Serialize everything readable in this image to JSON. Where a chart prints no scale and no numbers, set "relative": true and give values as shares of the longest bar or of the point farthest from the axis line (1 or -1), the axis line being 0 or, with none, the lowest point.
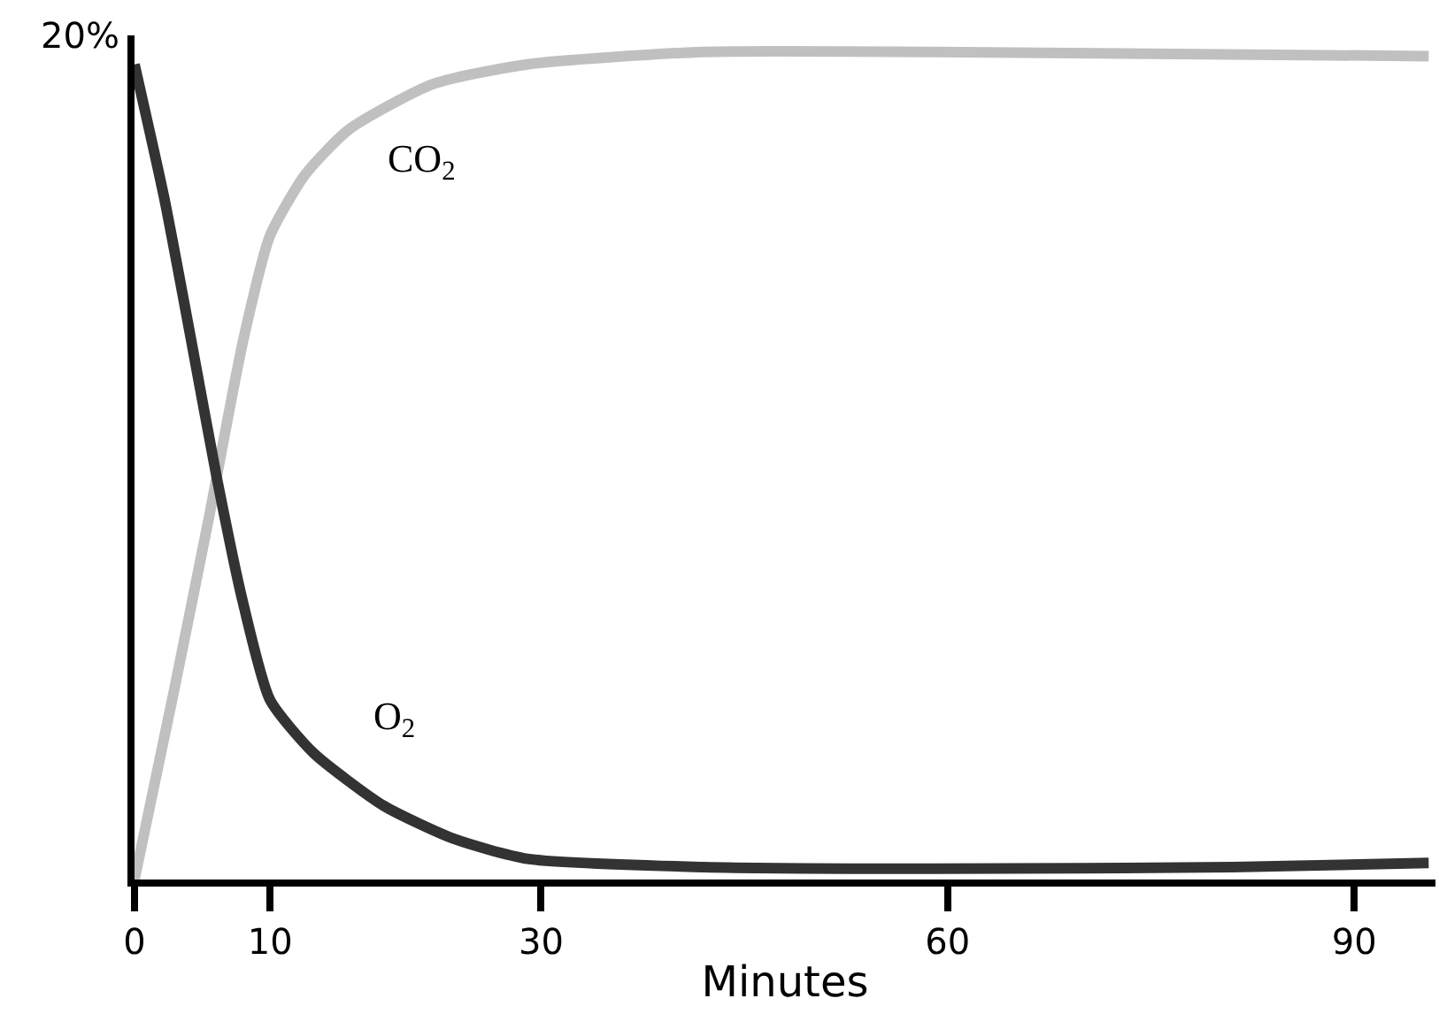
{
  "chart_data": {
    "type": "line",
    "relative": true,
    "xlabel": "Minutes",
    "xlim": [
      0,
      96
    ],
    "xticks": [
      0,
      10,
      30,
      60,
      90
    ],
    "legend": false,
    "marker": "none",
    "line_style": "solid",
    "series": [
      {
        "color": "#c0c0c0",
        "x": [
          0,
          2.9,
          5.5,
          8,
          10,
          12.6,
          15.8,
          22,
          29,
          42,
          59,
          95.5
        ],
        "values": [
          0,
          0.227,
          0.438,
          0.65,
          0.778,
          0.852,
          0.906,
          0.961,
          0.985,
          1,
          1,
          0.995
        ]
      },
      {
        "color": "#333333",
        "x": [
          0,
          2.2,
          4.2,
          6.1,
          8,
          10,
          13.2,
          18.4,
          23.6,
          29,
          42,
          59,
          81,
          95.5
        ],
        "values": [
          0.985,
          0.823,
          0.65,
          0.483,
          0.335,
          0.217,
          0.153,
          0.089,
          0.049,
          0.025,
          0.015,
          0.013,
          0.015,
          0.02
        ]
      }
    ],
    "annotations": [
      "20%",
      "CO$_{2}$",
      "O$_{2}$"
    ]
  }
}
